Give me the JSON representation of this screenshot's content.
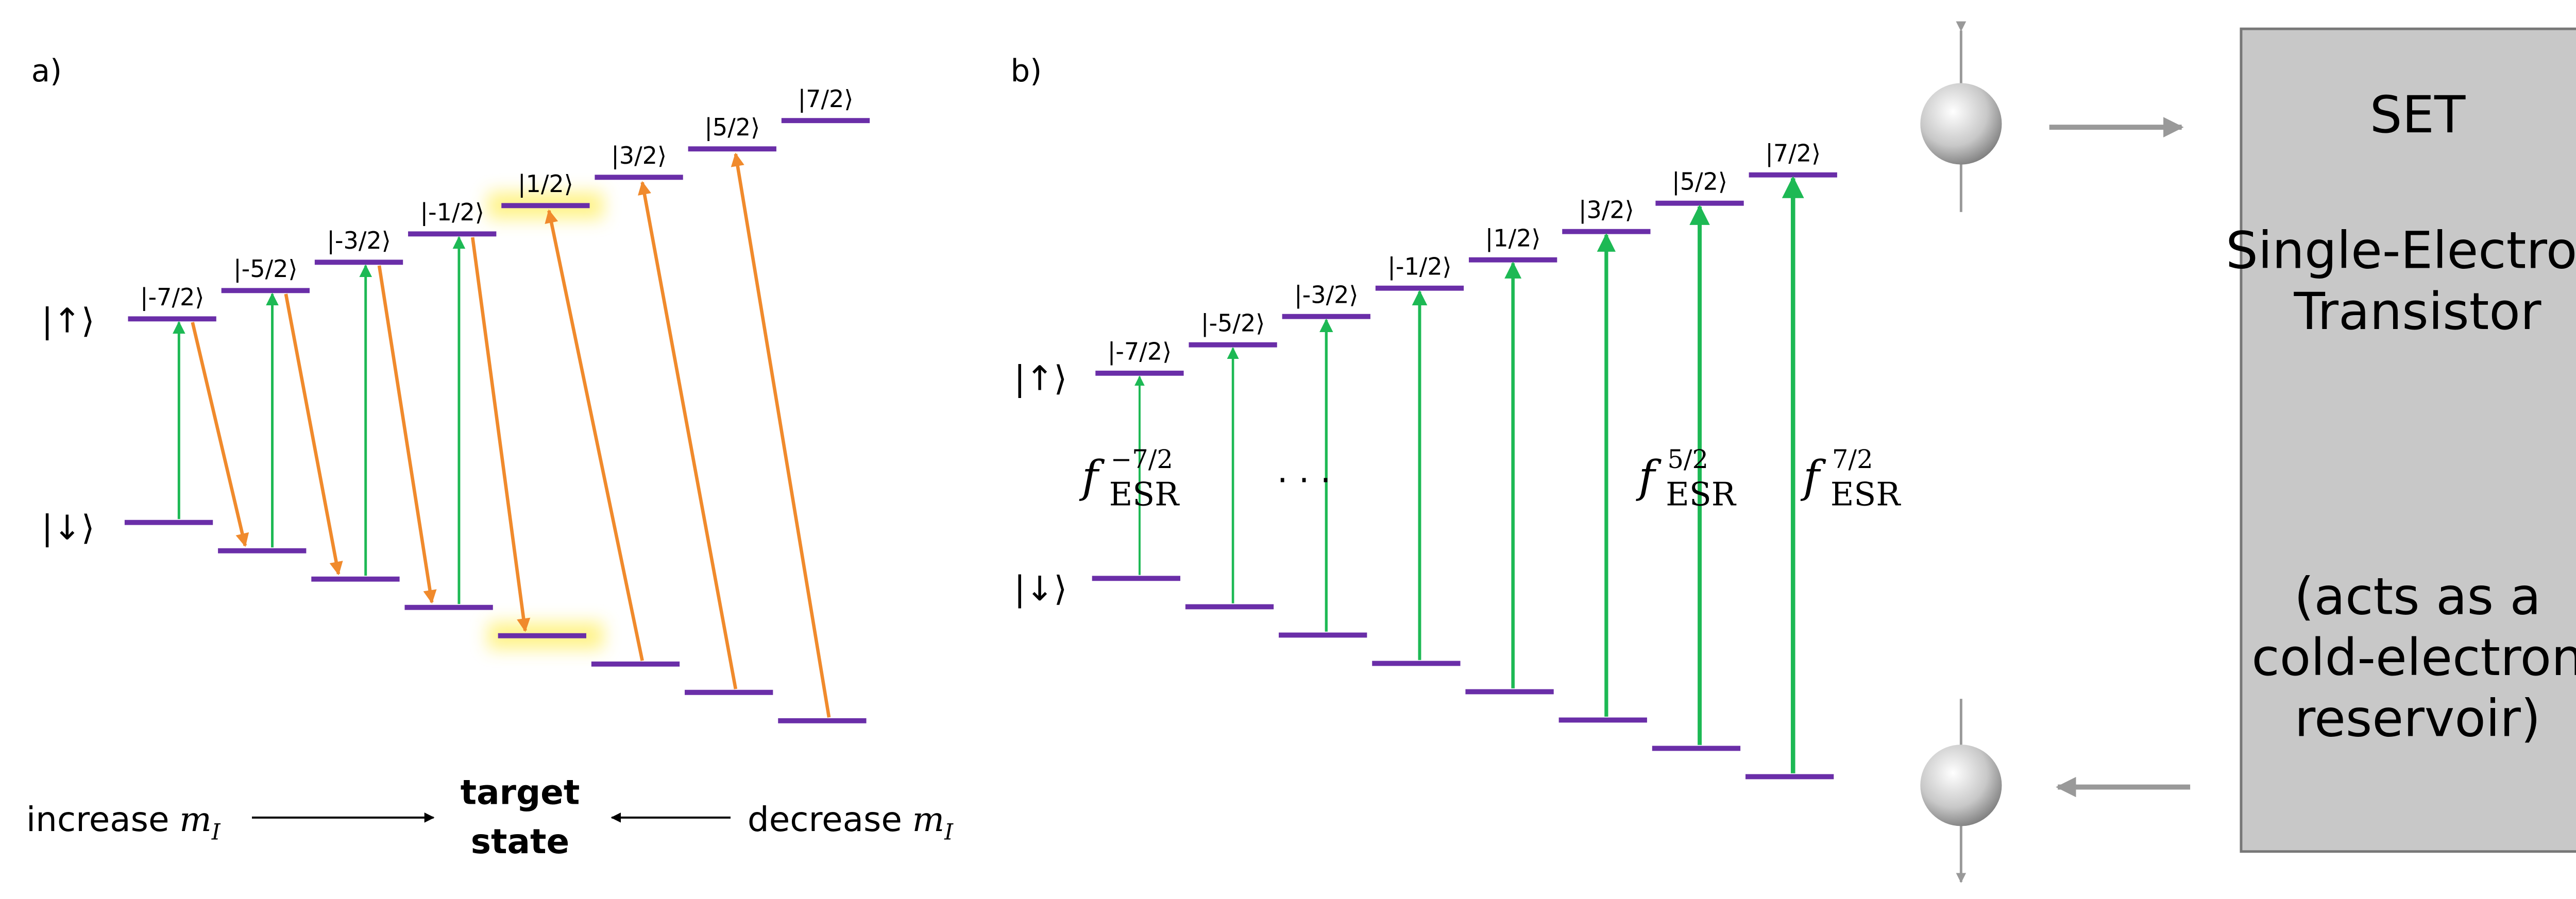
{
  "panel_a": {
    "label": "a)",
    "up_label": "|↑⟩",
    "down_label": "|↓⟩",
    "levels": [
      "|-7/2⟩",
      "|-5/2⟩",
      "|-3/2⟩",
      "|-1/2⟩",
      "|1/2⟩",
      "|3/2⟩",
      "|5/2⟩",
      "|7/2⟩"
    ],
    "increase": {
      "text": "increase",
      "symbol": "m",
      "sub": "I"
    },
    "target": [
      "target",
      "state"
    ],
    "decrease": {
      "text": "decrease",
      "symbol": "m",
      "sub": "I"
    }
  },
  "panel_b": {
    "label": "b)",
    "up_label": "|↑⟩",
    "down_label": "|↓⟩",
    "levels": [
      "|-7/2⟩",
      "|-5/2⟩",
      "|-3/2⟩",
      "|-1/2⟩",
      "|1/2⟩",
      "|3/2⟩",
      "|5/2⟩",
      "|7/2⟩"
    ],
    "esr_labels": [
      {
        "f": "f",
        "sup": "−7/2",
        "sub": "ESR"
      },
      {
        "f": "f",
        "sup": "5/2",
        "sub": "ESR"
      },
      {
        "f": "f",
        "sup": "7/2",
        "sub": "ESR"
      }
    ],
    "dots": "·      ·      ·"
  },
  "set": {
    "title": "SET",
    "name": [
      "Single-Electron",
      "Transistor"
    ],
    "note": [
      "(acts as a",
      "cold-electron",
      "reservoir)"
    ]
  }
}
